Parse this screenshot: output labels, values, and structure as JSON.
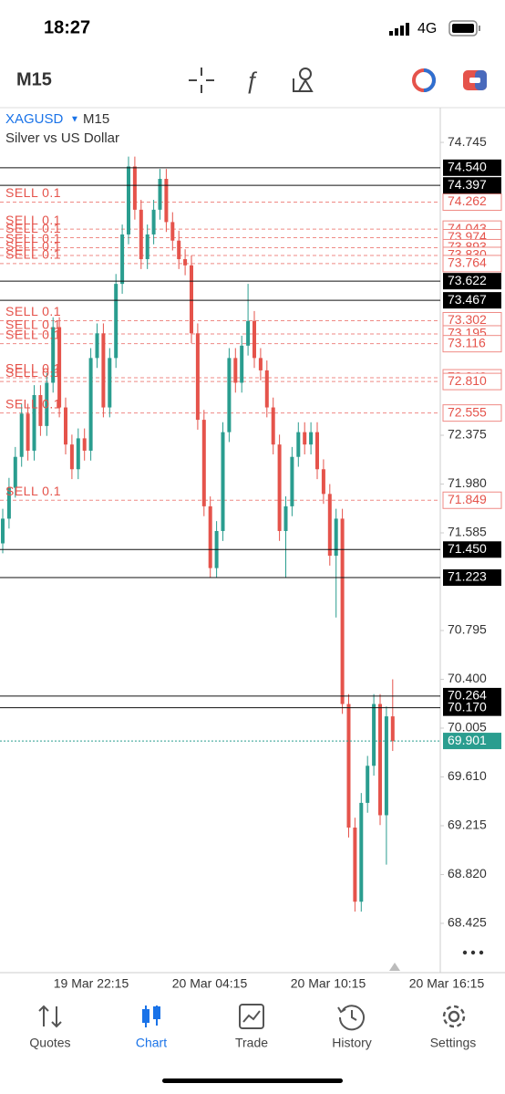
{
  "status": {
    "time": "18:27",
    "network": "4G"
  },
  "toolbar": {
    "timeframe": "M15"
  },
  "tabs": [
    "Quotes",
    "Chart",
    "Trade",
    "History",
    "Settings"
  ],
  "chart_data": {
    "type": "candlestick",
    "symbol": "XAGUSD",
    "timeframe": "M15",
    "description": "Silver vs US Dollar",
    "up_color": "#2a9d8f",
    "down_color": "#e5534b",
    "ylim": [
      68.026,
      75.026
    ],
    "yticks": [
      74.745,
      72.375,
      {
        "value": 71.98,
        "label": "71.980"
      },
      71.585,
      70.795,
      {
        "value": 70.4,
        "label": "70.400"
      },
      70.005,
      {
        "value": 69.61,
        "label": "69.610"
      },
      69.215,
      {
        "value": 68.82,
        "label": "68.820"
      },
      68.425
    ],
    "x_labels": [
      "19 Mar 22:15",
      "20 Mar 04:15",
      "20 Mar 10:15",
      "20 Mar 16:15"
    ],
    "current_price": 69.901,
    "levels": {
      "values": [
        74.54,
        74.397,
        73.622,
        73.467,
        71.45,
        71.223,
        70.264,
        70.17
      ],
      "value_labels": [
        "74.540",
        "74.397",
        "73.622",
        "73.467",
        "71.450",
        "71.223",
        "70.264",
        "70.170"
      ]
    },
    "sell_orders": {
      "label": "SELL 0.1",
      "values": [
        74.262,
        74.043,
        73.974,
        73.893,
        73.83,
        73.764,
        73.302,
        73.195,
        73.116,
        72.84,
        72.81,
        72.555,
        71.849
      ],
      "value_labels": [
        "74.262",
        "74.043",
        "73.974",
        "73.893",
        "73.830",
        "73.764",
        "73.302",
        "73.195",
        "73.116",
        "72.840",
        "72.810",
        "72.555",
        "71.849"
      ]
    },
    "candles": [
      [
        71.5,
        71.78,
        71.42,
        71.7
      ],
      [
        71.7,
        72.03,
        71.62,
        71.95
      ],
      [
        71.95,
        72.28,
        71.87,
        72.2
      ],
      [
        72.2,
        72.63,
        72.12,
        72.55
      ],
      [
        72.55,
        72.63,
        72.17,
        72.25
      ],
      [
        72.25,
        72.78,
        72.17,
        72.7
      ],
      [
        72.7,
        72.78,
        72.37,
        72.45
      ],
      [
        72.45,
        72.88,
        72.37,
        72.8
      ],
      [
        72.8,
        73.33,
        72.72,
        73.25
      ],
      [
        73.25,
        73.33,
        72.52,
        72.6
      ],
      [
        72.6,
        72.68,
        72.22,
        72.3
      ],
      [
        72.3,
        72.38,
        72.02,
        72.1
      ],
      [
        72.1,
        72.43,
        72.02,
        72.35
      ],
      [
        72.35,
        72.43,
        72.17,
        72.25
      ],
      [
        72.25,
        73.08,
        72.17,
        73.0
      ],
      [
        73.0,
        73.28,
        72.92,
        73.2
      ],
      [
        73.2,
        73.28,
        72.52,
        72.6
      ],
      [
        72.6,
        73.08,
        72.52,
        73.0
      ],
      [
        73.0,
        73.68,
        72.92,
        73.6
      ],
      [
        73.6,
        74.08,
        73.52,
        74.0
      ],
      [
        74.0,
        74.63,
        73.92,
        74.55
      ],
      [
        74.55,
        74.63,
        74.12,
        74.2
      ],
      [
        74.2,
        74.28,
        73.72,
        73.8
      ],
      [
        73.8,
        74.08,
        73.72,
        74.0
      ],
      [
        74.0,
        74.28,
        73.92,
        74.2
      ],
      [
        74.2,
        74.53,
        74.12,
        74.45
      ],
      [
        74.45,
        74.53,
        74.02,
        74.1
      ],
      [
        74.1,
        74.18,
        73.87,
        73.95
      ],
      [
        73.95,
        74.03,
        73.72,
        73.8
      ],
      [
        73.8,
        73.88,
        73.67,
        73.75
      ],
      [
        73.75,
        73.83,
        73.12,
        73.2
      ],
      [
        73.2,
        73.28,
        72.42,
        72.5
      ],
      [
        72.5,
        72.58,
        71.72,
        71.8
      ],
      [
        71.8,
        71.88,
        71.22,
        71.3
      ],
      [
        71.3,
        71.68,
        71.22,
        71.6
      ],
      [
        71.6,
        72.48,
        71.52,
        72.4
      ],
      [
        72.4,
        73.08,
        72.32,
        73.0
      ],
      [
        73.0,
        73.08,
        72.72,
        72.8
      ],
      [
        72.8,
        73.18,
        72.72,
        73.1
      ],
      [
        73.1,
        73.6,
        73.02,
        73.3
      ],
      [
        73.3,
        73.38,
        72.92,
        73.0
      ],
      [
        73.0,
        73.08,
        72.82,
        72.9
      ],
      [
        72.9,
        72.98,
        72.52,
        72.6
      ],
      [
        72.6,
        72.68,
        72.22,
        72.3
      ],
      [
        72.3,
        72.38,
        71.52,
        71.6
      ],
      [
        71.6,
        71.88,
        71.22,
        71.8
      ],
      [
        71.8,
        72.28,
        71.72,
        72.2
      ],
      [
        72.2,
        72.48,
        72.12,
        72.4
      ],
      [
        72.4,
        72.48,
        72.22,
        72.3
      ],
      [
        72.3,
        72.48,
        72.22,
        72.4
      ],
      [
        72.4,
        72.48,
        72.02,
        72.1
      ],
      [
        72.1,
        72.18,
        71.82,
        71.9
      ],
      [
        71.9,
        71.98,
        71.32,
        71.4
      ],
      [
        71.4,
        71.78,
        70.9,
        71.7
      ],
      [
        71.7,
        71.78,
        70.12,
        70.2
      ],
      [
        70.2,
        70.28,
        69.12,
        69.2
      ],
      [
        69.2,
        69.28,
        68.52,
        68.6
      ],
      [
        68.6,
        69.48,
        68.52,
        69.4
      ],
      [
        69.4,
        69.78,
        69.32,
        69.7
      ],
      [
        69.7,
        70.28,
        69.62,
        70.2
      ],
      [
        70.2,
        70.28,
        69.22,
        69.3
      ],
      [
        69.3,
        70.18,
        68.9,
        70.1
      ],
      [
        70.1,
        70.4,
        69.82,
        69.9
      ]
    ]
  }
}
